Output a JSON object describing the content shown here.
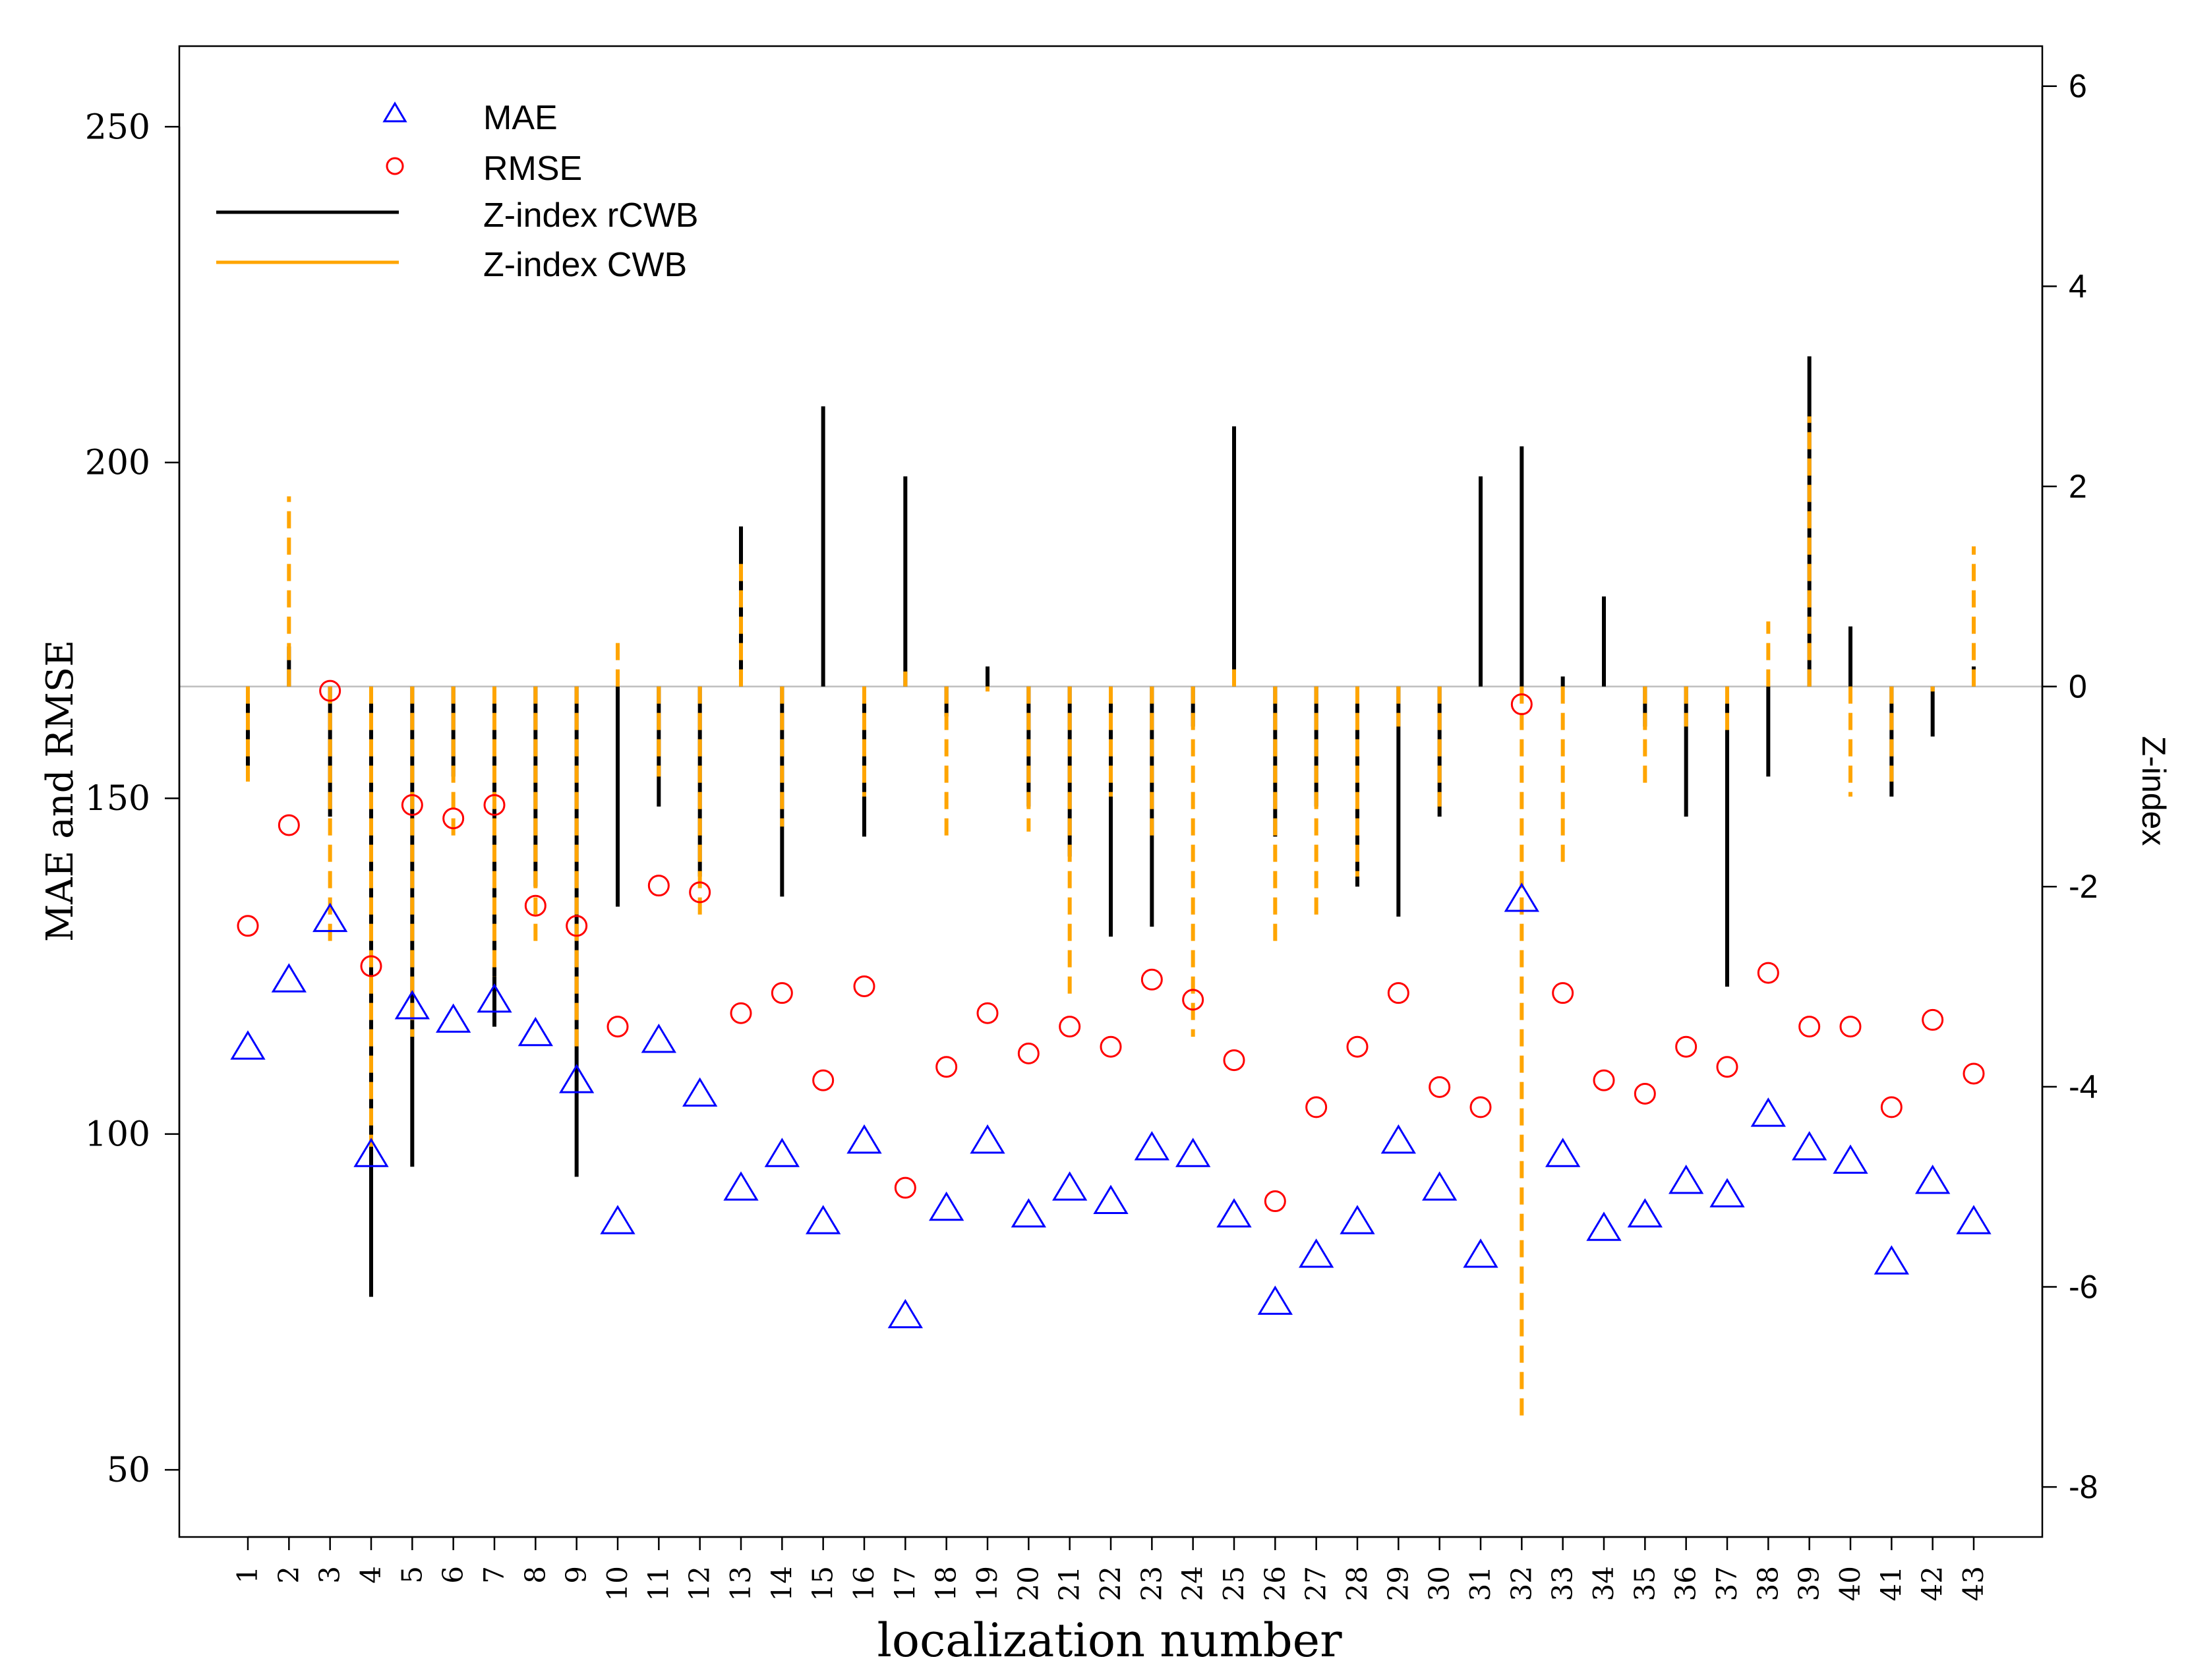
{
  "chart_data": {
    "type": "scatter",
    "title": "",
    "xlabel": "localization number",
    "ylabel_left": "MAE and RMSE",
    "ylabel_right": "Z-index",
    "ylim_left": [
      40,
      262
    ],
    "ylim_right": [
      -8.5,
      6.4
    ],
    "yticks_left": [
      "50",
      "100",
      "150",
      "200",
      "250"
    ],
    "yticks_right": [
      "-8",
      "-6",
      "-4",
      "-2",
      "0",
      "2",
      "4",
      "6"
    ],
    "categories": [
      "1",
      "2",
      "3",
      "4",
      "5",
      "6",
      "7",
      "8",
      "9",
      "10",
      "11",
      "12",
      "13",
      "14",
      "15",
      "16",
      "17",
      "18",
      "19",
      "20",
      "21",
      "22",
      "23",
      "24",
      "25",
      "26",
      "27",
      "28",
      "29",
      "30",
      "31",
      "32",
      "33",
      "34",
      "35",
      "36",
      "37",
      "38",
      "39",
      "40",
      "41",
      "42",
      "43"
    ],
    "colors": {
      "mae": "#0000ff",
      "rmse": "#ff0000",
      "rcwb": "#000000",
      "cwb": "#ffa500",
      "zero_line": "#bebebe",
      "axis": "#000000"
    },
    "legend": {
      "position": "top-left",
      "entries": [
        {
          "label": "MAE",
          "marker": "triangle",
          "color": "#0000ff"
        },
        {
          "label": "RMSE",
          "marker": "circle",
          "color": "#ff0000"
        },
        {
          "label": "Z-index rCWB",
          "marker": "line",
          "color": "#000000"
        },
        {
          "label": "Z-index CWB",
          "marker": "line",
          "color": "#ffa500"
        }
      ]
    },
    "series": [
      {
        "name": "MAE",
        "axis": "left",
        "values": [
          113,
          123,
          132,
          97,
          119,
          117,
          120,
          115,
          108,
          87,
          114,
          106,
          92,
          97,
          87,
          99,
          73,
          89,
          99,
          88,
          92,
          90,
          98,
          97,
          88,
          75,
          82,
          87,
          99,
          92,
          82,
          135,
          97,
          86,
          88,
          93,
          91,
          103,
          98,
          96,
          81,
          93,
          87
        ]
      },
      {
        "name": "RMSE",
        "axis": "left",
        "values": [
          131,
          146,
          166,
          125,
          149,
          147,
          149,
          134,
          131,
          116,
          137,
          136,
          118,
          121,
          108,
          122,
          92,
          110,
          118,
          112,
          116,
          113,
          123,
          120,
          111,
          90,
          104,
          113,
          121,
          107,
          104,
          164,
          121,
          108,
          106,
          113,
          110,
          124,
          116,
          116,
          104,
          117,
          109
        ]
      },
      {
        "name": "Z-index rCWB",
        "axis": "right",
        "values": [
          -0.8,
          0.4,
          -1.3,
          -6.1,
          -4.8,
          -0.9,
          -3.4,
          -2.0,
          -4.9,
          -2.2,
          -1.2,
          -1.9,
          1.6,
          -2.1,
          2.8,
          -1.5,
          2.1,
          -0.3,
          0.2,
          -1.2,
          -1.7,
          -2.5,
          -2.4,
          -0.4,
          2.6,
          -1.5,
          -1.2,
          -2.0,
          -2.3,
          -1.3,
          2.1,
          2.4,
          0.1,
          0.9,
          -0.4,
          -1.3,
          -3.0,
          -0.9,
          3.3,
          0.6,
          -1.1,
          -0.5,
          0.2
        ]
      },
      {
        "name": "Z-index CWB",
        "axis": "right",
        "values": [
          -0.95,
          1.9,
          -2.6,
          -4.6,
          -3.5,
          -1.5,
          -2.9,
          -2.6,
          -3.6,
          0.45,
          -0.9,
          -2.3,
          1.3,
          -1.4,
          0.0,
          -1.1,
          0.15,
          -1.5,
          -0.05,
          -1.45,
          -3.1,
          -1.1,
          -1.5,
          -3.5,
          0.2,
          -2.55,
          -2.3,
          -1.9,
          -0.4,
          -1.2,
          0.0,
          -7.3,
          -1.8,
          0.0,
          -1.0,
          -0.4,
          -0.5,
          0.65,
          2.7,
          -1.1,
          -0.95,
          -0.05,
          1.4
        ]
      }
    ]
  }
}
